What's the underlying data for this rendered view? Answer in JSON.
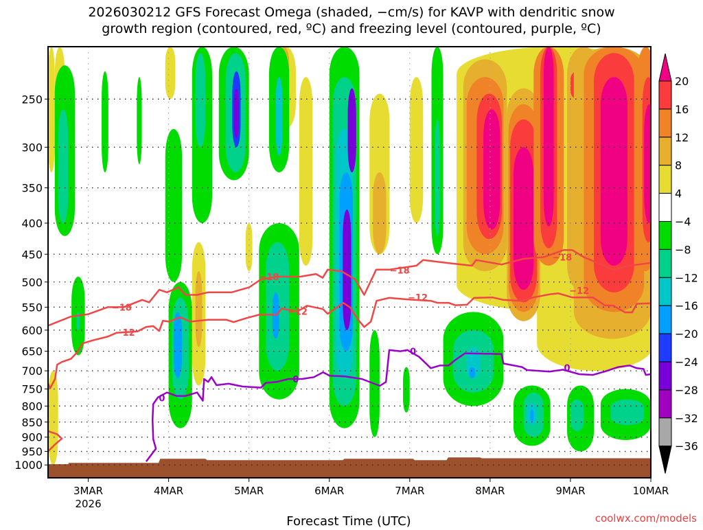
{
  "chart_data": {
    "type": "heatmap",
    "title_lines": [
      "2026030212 GFS Forecast Omega (shaded, −cm/s) for KAVP with dendritic snow",
      "growth region (contoured, red, ºC) and freezing level (contoured, purple, ºC)"
    ],
    "xlabel": "Forecast Time (UTC)",
    "credit": "coolwx.com/models",
    "x_unit": "hours since 2026-03-02 12Z",
    "xlim_hours": [
      0,
      180
    ],
    "ylim_hpa": [
      205,
      1050
    ],
    "y_scale": "log",
    "y_ticks": [
      250,
      300,
      350,
      400,
      450,
      500,
      550,
      600,
      650,
      700,
      750,
      800,
      850,
      900,
      950,
      1000
    ],
    "x_ticks": [
      {
        "hour": 12,
        "label": "3MAR",
        "sub": "2026"
      },
      {
        "hour": 36,
        "label": "4MAR"
      },
      {
        "hour": 60,
        "label": "5MAR"
      },
      {
        "hour": 84,
        "label": "6MAR"
      },
      {
        "hour": 108,
        "label": "7MAR"
      },
      {
        "hour": 132,
        "label": "8MAR"
      },
      {
        "hour": 156,
        "label": "9MAR"
      },
      {
        "hour": 180,
        "label": "10MAR"
      }
    ],
    "colorbar": {
      "labels": [
        "20",
        "16",
        "12",
        "8",
        "4",
        "−4",
        "−8",
        "−12",
        "−16",
        "−20",
        "−24",
        "−28",
        "−32",
        "−36"
      ],
      "over_color": "#f00082",
      "under_color": "#000000",
      "colors_top_to_bottom": [
        "#fa3c3c",
        "#f08228",
        "#e6af2d",
        "#e6dc32",
        "#ffffff",
        "#00dc00",
        "#00d28c",
        "#00c8c8",
        "#00a0ff",
        "#1e3cff",
        "#7800d8",
        "#a000c0",
        "#a8a8a8"
      ]
    },
    "omega_regions_note": "[t_start_hour, t_end_hour, p_top_hPa, p_bottom_hPa, omega_-cm/s]",
    "omega_regions": [
      [
        122,
        181,
        205,
        560,
        6
      ],
      [
        146,
        181,
        400,
        700,
        6
      ],
      [
        96,
        102,
        245,
        450,
        6
      ],
      [
        97,
        101,
        330,
        450,
        10
      ],
      [
        108,
        112,
        230,
        400,
        6
      ],
      [
        124,
        137,
        215,
        480,
        10
      ],
      [
        125,
        136,
        230,
        450,
        14
      ],
      [
        128,
        135.5,
        245,
        425,
        18
      ],
      [
        130,
        135,
        260,
        410,
        22
      ],
      [
        137,
        147,
        240,
        580,
        10
      ],
      [
        137.5,
        146.5,
        255,
        560,
        14
      ],
      [
        138,
        146,
        270,
        540,
        18
      ],
      [
        139,
        145,
        300,
        515,
        22
      ],
      [
        145,
        154,
        205,
        470,
        14
      ],
      [
        147,
        152,
        205,
        440,
        18
      ],
      [
        148,
        151,
        205,
        405,
        22
      ],
      [
        155,
        165,
        205,
        520,
        10
      ],
      [
        156,
        160,
        225,
        250,
        18
      ],
      [
        157,
        180,
        205,
        620,
        10
      ],
      [
        160,
        178,
        205,
        560,
        14
      ],
      [
        163,
        175,
        210,
        520,
        18
      ],
      [
        165,
        173,
        230,
        470,
        22
      ],
      [
        176,
        181,
        205,
        480,
        14
      ],
      [
        177.5,
        181,
        230,
        430,
        18
      ],
      [
        178,
        181,
        255,
        400,
        22
      ],
      [
        0,
        2,
        205,
        330,
        6
      ],
      [
        0,
        3,
        700,
        1000,
        6
      ],
      [
        2,
        5,
        205,
        300,
        6
      ],
      [
        35,
        38,
        205,
        250,
        6
      ],
      [
        68,
        74,
        205,
        280,
        6
      ],
      [
        69,
        72,
        205,
        250,
        10
      ],
      [
        75,
        79,
        230,
        470,
        6
      ],
      [
        43,
        47,
        430,
        740,
        6
      ],
      [
        44,
        46,
        480,
        640,
        10
      ],
      [
        70,
        73,
        540,
        750,
        6
      ],
      [
        71,
        72,
        560,
        680,
        14
      ],
      [
        59,
        61,
        400,
        480,
        6
      ],
      [
        114.5,
        118,
        205,
        450,
        -6
      ],
      [
        115.5,
        117,
        270,
        420,
        -10
      ],
      [
        84,
        93,
        205,
        870,
        -6
      ],
      [
        85,
        92,
        230,
        800,
        -10
      ],
      [
        86,
        91,
        280,
        720,
        -14
      ],
      [
        87,
        91,
        330,
        650,
        -18
      ],
      [
        88,
        90.5,
        380,
        600,
        -26
      ],
      [
        89.5,
        92,
        240,
        330,
        -26
      ],
      [
        51,
        60,
        205,
        340,
        -6
      ],
      [
        53,
        59,
        210,
        330,
        -10
      ],
      [
        55,
        57.5,
        225,
        300,
        -22
      ],
      [
        55.5,
        57,
        240,
        290,
        -28
      ],
      [
        35,
        40,
        280,
        500,
        -8
      ],
      [
        36,
        43,
        500,
        870,
        -6
      ],
      [
        37,
        42,
        530,
        780,
        -10
      ],
      [
        37.5,
        40,
        560,
        720,
        -20
      ],
      [
        43,
        49,
        205,
        400,
        -6
      ],
      [
        44,
        47,
        210,
        300,
        -10
      ],
      [
        63,
        75,
        400,
        780,
        -6
      ],
      [
        65,
        72,
        430,
        700,
        -10
      ],
      [
        67,
        69,
        520,
        620,
        -20
      ],
      [
        66,
        72,
        205,
        330,
        -6
      ],
      [
        68,
        70,
        230,
        310,
        -14
      ],
      [
        2,
        8,
        220,
        420,
        -6
      ],
      [
        3,
        6,
        260,
        400,
        -10
      ],
      [
        7,
        11,
        490,
        660,
        -6
      ],
      [
        8.5,
        9.5,
        560,
        600,
        -12
      ],
      [
        16,
        18,
        225,
        330,
        -6
      ],
      [
        26.5,
        28,
        230,
        320,
        -6
      ],
      [
        118,
        136,
        560,
        800,
        -6
      ],
      [
        121,
        133,
        600,
        760,
        -10
      ],
      [
        125,
        129,
        640,
        720,
        -14
      ],
      [
        125.8,
        127.5,
        690,
        720,
        -18
      ],
      [
        139,
        150,
        740,
        930,
        -6
      ],
      [
        142,
        148,
        760,
        900,
        -10
      ],
      [
        143,
        146,
        790,
        860,
        -14
      ],
      [
        144,
        145,
        810,
        850,
        -18
      ],
      [
        155,
        163,
        740,
        950,
        -6
      ],
      [
        156,
        160,
        780,
        880,
        -10
      ],
      [
        165,
        180,
        750,
        910,
        -6
      ],
      [
        168,
        178,
        780,
        860,
        -10
      ],
      [
        106,
        108,
        690,
        820,
        -6
      ],
      [
        96,
        99,
        600,
        900,
        -6
      ]
    ],
    "contours": [
      {
        "name": "minus-18",
        "color": "#f04646",
        "label": "−18",
        "points": [
          [
            0,
            590
          ],
          [
            6.8,
            570
          ],
          [
            11.9,
            565
          ],
          [
            17.8,
            550
          ],
          [
            22.6,
            550
          ],
          [
            28.1,
            535
          ],
          [
            30.2,
            540
          ],
          [
            33.2,
            515
          ],
          [
            35.5,
            520
          ],
          [
            39,
            510
          ],
          [
            41,
            525
          ],
          [
            44.5,
            525
          ],
          [
            47.8,
            520
          ],
          [
            54.8,
            520
          ],
          [
            60.1,
            510
          ],
          [
            63.6,
            495
          ],
          [
            68.3,
            490
          ],
          [
            75.3,
            490
          ],
          [
            80,
            485
          ],
          [
            82,
            492
          ],
          [
            83.5,
            477
          ],
          [
            87.6,
            480
          ],
          [
            91.7,
            495
          ],
          [
            94.4,
            525
          ],
          [
            98,
            477
          ],
          [
            102,
            477
          ],
          [
            110,
            470
          ],
          [
            112,
            460
          ],
          [
            119,
            465
          ],
          [
            126.6,
            470
          ],
          [
            127.8,
            460
          ],
          [
            135.4,
            468
          ],
          [
            142,
            458
          ],
          [
            148,
            455
          ],
          [
            154,
            443
          ],
          [
            156.5,
            443
          ],
          [
            160,
            455
          ],
          [
            168.8,
            477
          ],
          [
            173.7,
            470
          ],
          [
            180,
            465
          ]
        ],
        "labels_at": [
          [
            22,
            550
          ],
          [
            66,
            490
          ],
          [
            105,
            478
          ],
          [
            153.5,
            455
          ]
        ]
      },
      {
        "name": "minus-12",
        "color": "#f04646",
        "label": "−12",
        "points": [
          [
            0,
            735
          ],
          [
            0.6,
            748
          ],
          [
            2.1,
            722
          ],
          [
            2.7,
            684
          ],
          [
            4.1,
            677
          ],
          [
            6.8,
            669
          ],
          [
            8.8,
            652
          ],
          [
            10.3,
            631
          ],
          [
            13.7,
            623
          ],
          [
            17.8,
            615
          ],
          [
            20.5,
            606
          ],
          [
            26.7,
            603
          ],
          [
            29.3,
            593
          ],
          [
            31.4,
            591
          ],
          [
            33.2,
            602
          ],
          [
            34.3,
            579
          ],
          [
            36.3,
            581
          ],
          [
            38.4,
            574
          ],
          [
            39.6,
            572
          ],
          [
            42.5,
            581
          ],
          [
            47.8,
            577
          ],
          [
            53.3,
            577
          ],
          [
            55.4,
            582
          ],
          [
            58.9,
            574
          ],
          [
            63,
            566
          ],
          [
            68.3,
            566
          ],
          [
            69.7,
            553
          ],
          [
            74.5,
            559
          ],
          [
            77.3,
            547
          ],
          [
            82.1,
            554
          ],
          [
            83.5,
            564
          ],
          [
            86.2,
            551
          ],
          [
            88.2,
            541
          ],
          [
            90.3,
            551
          ],
          [
            92.3,
            574
          ],
          [
            94.4,
            593
          ],
          [
            96.4,
            581
          ],
          [
            98.1,
            537
          ],
          [
            101.9,
            531
          ],
          [
            107.3,
            534
          ],
          [
            114.3,
            537
          ],
          [
            116.3,
            541
          ],
          [
            119.6,
            541
          ],
          [
            121.6,
            546
          ],
          [
            125.1,
            545
          ],
          [
            127.2,
            531
          ],
          [
            132.7,
            530
          ],
          [
            136,
            535
          ],
          [
            141.5,
            537
          ],
          [
            145,
            530
          ],
          [
            149.7,
            524
          ],
          [
            152.4,
            522
          ],
          [
            156.5,
            530
          ],
          [
            162.7,
            530
          ],
          [
            166.2,
            546
          ],
          [
            168.8,
            547
          ],
          [
            172.3,
            561
          ],
          [
            174.4,
            561
          ],
          [
            175.8,
            543
          ],
          [
            180,
            542
          ]
        ],
        "labels_at": [
          [
            23,
            605
          ],
          [
            74.5,
            559
          ],
          [
            110.4,
            530
          ],
          [
            158.6,
            516
          ]
        ]
      },
      {
        "name": "minus-12-loop",
        "color": "#f04646",
        "label": "",
        "points": [
          [
            0,
            880
          ],
          [
            2.7,
            890
          ],
          [
            4.1,
            905
          ],
          [
            2.1,
            925
          ],
          [
            0,
            950
          ]
        ],
        "labels_at": []
      },
      {
        "name": "freezing-level-0",
        "color": "#9a00c8",
        "label": "0",
        "points": [
          [
            29.3,
            987
          ],
          [
            32.2,
            940
          ],
          [
            31.4,
            907
          ],
          [
            31.2,
            843
          ],
          [
            31.4,
            794
          ],
          [
            32.8,
            774
          ],
          [
            35.5,
            760
          ],
          [
            38.4,
            770
          ],
          [
            41,
            770
          ],
          [
            44.5,
            760
          ],
          [
            46.2,
            784
          ],
          [
            46.6,
            722
          ],
          [
            47.8,
            730
          ],
          [
            48.8,
            717
          ],
          [
            50.3,
            739
          ],
          [
            53.9,
            735
          ],
          [
            58.1,
            743
          ],
          [
            63.6,
            746
          ],
          [
            65,
            733
          ],
          [
            68.3,
            730
          ],
          [
            71.8,
            722
          ],
          [
            75.9,
            722
          ],
          [
            79.4,
            717
          ],
          [
            82.1,
            704
          ],
          [
            84.1,
            713
          ],
          [
            88.8,
            715
          ],
          [
            93.7,
            722
          ],
          [
            99.1,
            741
          ],
          [
            100.9,
            730
          ],
          [
            101.9,
            647
          ],
          [
            105.2,
            650
          ],
          [
            107.3,
            647
          ],
          [
            110.8,
            664
          ],
          [
            114.3,
            693
          ],
          [
            117,
            686
          ],
          [
            119.6,
            686
          ],
          [
            121.6,
            672
          ],
          [
            124.5,
            655
          ],
          [
            135.4,
            657
          ],
          [
            136,
            681
          ],
          [
            141.5,
            690
          ],
          [
            143,
            698
          ],
          [
            149.7,
            702
          ],
          [
            153.8,
            697
          ],
          [
            158.6,
            709
          ],
          [
            162.7,
            711
          ],
          [
            166.2,
            702
          ],
          [
            170.3,
            690
          ],
          [
            173.7,
            686
          ],
          [
            175.8,
            693
          ],
          [
            177.8,
            695
          ],
          [
            178.5,
            711
          ],
          [
            180,
            709
          ]
        ],
        "labels_at": [
          [
            34,
            775
          ],
          [
            74,
            722
          ],
          [
            109,
            650
          ],
          [
            155,
            692
          ]
        ]
      }
    ],
    "surface_pressure": [
      [
        0,
        997
      ],
      [
        6,
        997
      ],
      [
        6.2,
        992
      ],
      [
        33,
        992
      ],
      [
        33.5,
        977
      ],
      [
        47,
        977
      ],
      [
        47.5,
        982
      ],
      [
        88,
        982
      ],
      [
        88.5,
        977
      ],
      [
        109,
        977
      ],
      [
        109.5,
        982
      ],
      [
        119,
        982
      ],
      [
        119.5,
        972
      ],
      [
        129,
        972
      ],
      [
        129.5,
        975
      ],
      [
        180,
        975
      ]
    ]
  }
}
